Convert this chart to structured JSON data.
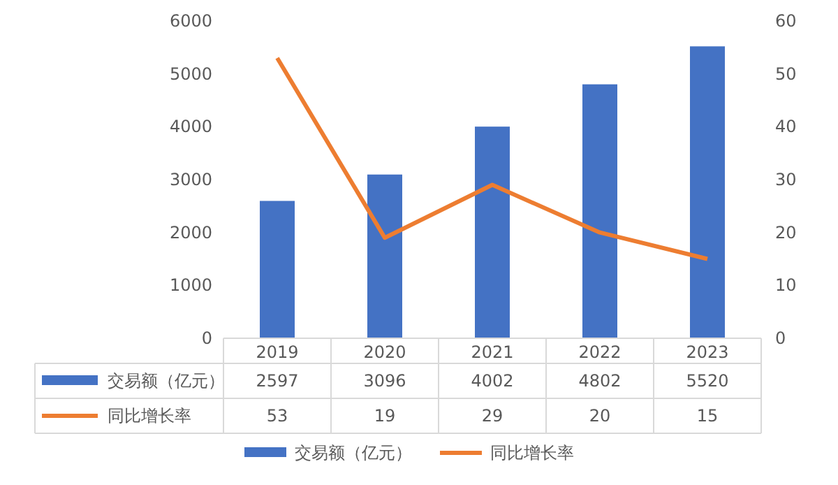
{
  "chart_data": {
    "type": "bar",
    "categories": [
      "2019",
      "2020",
      "2021",
      "2022",
      "2023"
    ],
    "series": [
      {
        "name": "交易额（亿元）",
        "color": "#4472c4",
        "values": [
          2597,
          3096,
          4002,
          4802,
          5520
        ]
      },
      {
        "name": "同比增长率",
        "type": "line",
        "axis": "y2",
        "color": "#ed7d31",
        "values": [
          53,
          19,
          29,
          20,
          15
        ]
      }
    ],
    "ylim": [
      0,
      6000
    ],
    "yticks": [
      0,
      1000,
      2000,
      3000,
      4000,
      5000,
      6000
    ],
    "y2lim": [
      0,
      60
    ],
    "y2ticks": [
      0,
      10,
      20,
      30,
      40,
      50,
      60
    ],
    "data_labels": true,
    "legend": "bottom"
  }
}
